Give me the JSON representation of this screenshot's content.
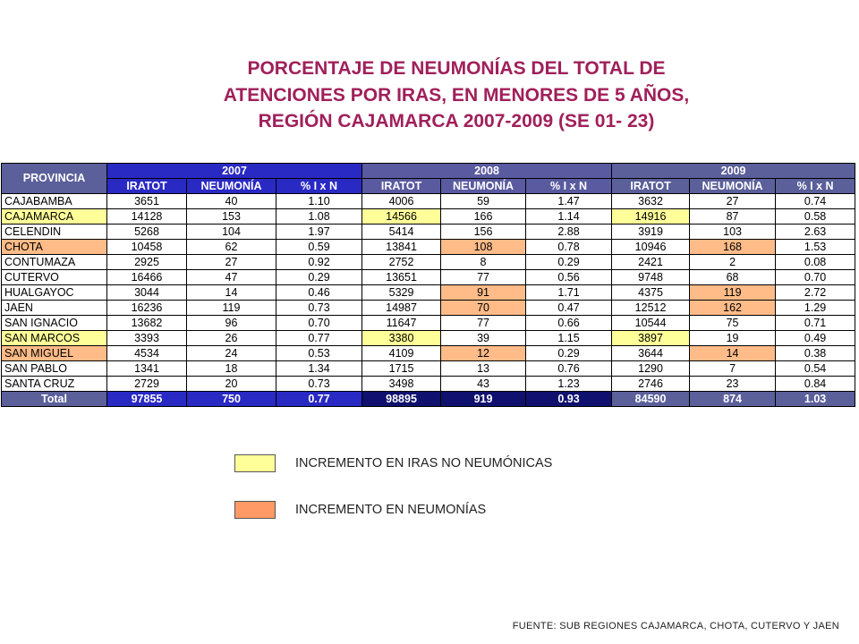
{
  "title": {
    "line1": "PORCENTAJE DE NEUMONÍAS DEL TOTAL DE",
    "line2": "ATENCIONES POR IRAS, EN MENORES DE 5 AÑOS,",
    "line3": "REGIÓN CAJAMARCA 2007-2009 (SE 01- 23)"
  },
  "colors": {
    "title": "#a0205a",
    "increase_iras": "#ffff99",
    "increase_neumonias": "#ffbb88"
  },
  "table": {
    "province_header": "PROVINCIA",
    "years": [
      "2007",
      "2008",
      "2009"
    ],
    "subheaders": [
      "IRATOT",
      "NEUMONÍA",
      "% I x N"
    ],
    "rows": [
      {
        "province": "CAJABAMBA",
        "highlight": "",
        "values": [
          "3651",
          "40",
          "1.10",
          "4006",
          "59",
          "1.47",
          "3632",
          "27",
          "0.74"
        ],
        "marks": [
          "",
          "",
          "",
          "",
          "",
          "",
          "",
          "",
          ""
        ]
      },
      {
        "province": "CAJAMARCA",
        "highlight": "yl",
        "values": [
          "14128",
          "153",
          "1.08",
          "14566",
          "166",
          "1.14",
          "14916",
          "87",
          "0.58"
        ],
        "marks": [
          "",
          "",
          "",
          "yl",
          "",
          "",
          "yl",
          "",
          ""
        ]
      },
      {
        "province": "CELENDIN",
        "highlight": "",
        "values": [
          "5268",
          "104",
          "1.97",
          "5414",
          "156",
          "2.88",
          "3919",
          "103",
          "2.63"
        ],
        "marks": [
          "",
          "",
          "",
          "",
          "",
          "",
          "",
          "",
          ""
        ]
      },
      {
        "province": "CHOTA",
        "highlight": "or",
        "values": [
          "10458",
          "62",
          "0.59",
          "13841",
          "108",
          "0.78",
          "10946",
          "168",
          "1.53"
        ],
        "marks": [
          "",
          "",
          "",
          "",
          "or",
          "",
          "",
          "or",
          ""
        ]
      },
      {
        "province": "CONTUMAZA",
        "highlight": "",
        "values": [
          "2925",
          "27",
          "0.92",
          "2752",
          "8",
          "0.29",
          "2421",
          "2",
          "0.08"
        ],
        "marks": [
          "",
          "",
          "",
          "",
          "",
          "",
          "",
          "",
          ""
        ]
      },
      {
        "province": "CUTERVO",
        "highlight": "",
        "values": [
          "16466",
          "47",
          "0.29",
          "13651",
          "77",
          "0.56",
          "9748",
          "68",
          "0.70"
        ],
        "marks": [
          "",
          "",
          "",
          "",
          "",
          "",
          "",
          "",
          ""
        ]
      },
      {
        "province": "HUALGAYOC",
        "highlight": "",
        "values": [
          "3044",
          "14",
          "0.46",
          "5329",
          "91",
          "1.71",
          "4375",
          "119",
          "2.72"
        ],
        "marks": [
          "",
          "",
          "",
          "",
          "or",
          "",
          "",
          "or",
          ""
        ]
      },
      {
        "province": "JAEN",
        "highlight": "",
        "values": [
          "16236",
          "119",
          "0.73",
          "14987",
          "70",
          "0.47",
          "12512",
          "162",
          "1.29"
        ],
        "marks": [
          "",
          "",
          "",
          "",
          "or",
          "",
          "",
          "or",
          ""
        ]
      },
      {
        "province": "SAN IGNACIO",
        "highlight": "",
        "values": [
          "13682",
          "96",
          "0.70",
          "11647",
          "77",
          "0.66",
          "10544",
          "75",
          "0.71"
        ],
        "marks": [
          "",
          "",
          "",
          "",
          "",
          "",
          "",
          "",
          ""
        ]
      },
      {
        "province": "SAN MARCOS",
        "highlight": "yl",
        "values": [
          "3393",
          "26",
          "0.77",
          "3380",
          "39",
          "1.15",
          "3897",
          "19",
          "0.49"
        ],
        "marks": [
          "",
          "",
          "",
          "yl",
          "",
          "",
          "yl",
          "",
          ""
        ]
      },
      {
        "province": "SAN MIGUEL",
        "highlight": "or",
        "values": [
          "4534",
          "24",
          "0.53",
          "4109",
          "12",
          "0.29",
          "3644",
          "14",
          "0.38"
        ],
        "marks": [
          "",
          "",
          "",
          "",
          "or",
          "",
          "",
          "or",
          ""
        ]
      },
      {
        "province": "SAN PABLO",
        "highlight": "",
        "values": [
          "1341",
          "18",
          "1.34",
          "1715",
          "13",
          "0.76",
          "1290",
          "7",
          "0.54"
        ],
        "marks": [
          "",
          "",
          "",
          "",
          "",
          "",
          "",
          "",
          ""
        ]
      },
      {
        "province": "SANTA CRUZ",
        "highlight": "",
        "values": [
          "2729",
          "20",
          "0.73",
          "3498",
          "43",
          "1.23",
          "2746",
          "23",
          "0.84"
        ],
        "marks": [
          "",
          "",
          "",
          "",
          "",
          "",
          "",
          "",
          ""
        ]
      }
    ],
    "total": {
      "label": "Total",
      "values": [
        "97855",
        "750",
        "0.77",
        "98895",
        "919",
        "0.93",
        "84590",
        "874",
        "1.03"
      ]
    }
  },
  "legend": {
    "iras": "INCREMENTO EN IRAS NO NEUMÓNICAS",
    "neumonias": "INCREMENTO EN NEUMONÍAS"
  },
  "source": "FUENTE: SUB REGIONES CAJAMARCA, CHOTA, CUTERVO Y JAEN"
}
